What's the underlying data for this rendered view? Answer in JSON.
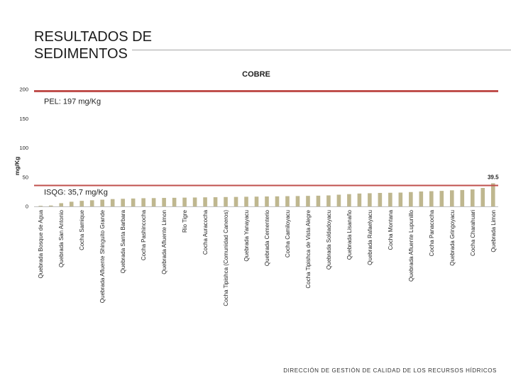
{
  "slide": {
    "title": "RESULTADOS DE SEDIMENTOS",
    "footer": "DIRECCIÓN DE GESTIÓN DE CALIDAD DE LOS RECURSOS HÍDRICOS"
  },
  "chart_data": {
    "type": "bar",
    "title": "COBRE",
    "ylabel": "mg/Kg",
    "ylim": [
      0,
      200
    ],
    "yticks": [
      0,
      50,
      100,
      150,
      200
    ],
    "grid": false,
    "legend": "none",
    "categories": [
      "Quebrada Bosque de Agua",
      "",
      "Quebrada San Antonio",
      "",
      "Cocha Samique",
      "",
      "Quebrada Afluente Shinguito Grande",
      "",
      "Quebrada Santa Barbara",
      "",
      "Cocha Pashincocha",
      "",
      "Quebrada Afluente Limon",
      "",
      "Rio Tigre",
      "",
      "Cocha Auracocha",
      "",
      "Cocha Tipishca (Comunidad Caneros)",
      "",
      "Quebrada Yanayacu",
      "",
      "Quebrada Cementerio",
      "",
      "Cocha Camiloyacu",
      "",
      "Cocha Tipishca de Vista Alegre",
      "",
      "Quebrada Soldadoyacu",
      "",
      "Quebrada Lisanaño",
      "",
      "Quebrada Rafaelyacu",
      "",
      "Cocha Montana",
      "",
      "Quebrada Afluente Lupunillo",
      "",
      "Cocha Panacocha",
      "",
      "Quebrada Gringoyacu",
      "",
      "Cocha Charahuari",
      "",
      "Quebrada Limon"
    ],
    "values": [
      1.0,
      1.5,
      5.5,
      8.0,
      9.5,
      10.5,
      11.5,
      12.5,
      13.0,
      13.5,
      14.0,
      14.2,
      14.5,
      14.7,
      15.0,
      15.2,
      15.5,
      15.7,
      16.0,
      16.2,
      16.5,
      16.7,
      17.0,
      17.2,
      17.5,
      17.7,
      18.0,
      18.3,
      18.8,
      20.0,
      21.0,
      22.0,
      22.5,
      23.0,
      23.3,
      23.6,
      24.5,
      25.5,
      26.0,
      26.5,
      27.5,
      28.0,
      29.0,
      31.5,
      39.5
    ],
    "data_labels": [
      {
        "category_index": 44,
        "text": "39.5"
      }
    ],
    "reference_lines": [
      {
        "label": "PEL: 197 mg/Kg",
        "value": 197
      },
      {
        "label": "ISQG: 35,7 mg/Kg",
        "value": 35.7
      }
    ],
    "colors": {
      "bar": "#bfb78f",
      "reference_line": "#c0504d",
      "axis": "#bfbfbf"
    }
  }
}
